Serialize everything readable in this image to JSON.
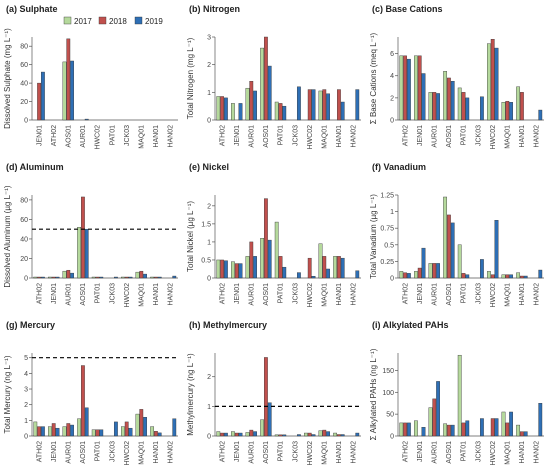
{
  "legend": {
    "years": [
      "2017",
      "2018",
      "2019"
    ],
    "colors": [
      "#b5d99c",
      "#c0504d",
      "#2e6fb5"
    ]
  },
  "chart_data": [
    {
      "type": "bar",
      "title": "(a) Sulphate",
      "ylabel": "Dissolved Sulphate (mg L⁻¹)",
      "ylim": [
        0,
        90
      ],
      "yticks": [
        0,
        20,
        40,
        60,
        80
      ],
      "categories": [
        "JEN01",
        "ATH02",
        "AOS01",
        "AUR01",
        "HWC02",
        "PAT01",
        "JCK03",
        "MAQ01",
        "HAN01",
        "HAN02"
      ],
      "series": [
        {
          "name": "2017",
          "values": [
            0,
            0,
            63,
            0,
            0,
            0,
            0,
            0,
            0,
            0
          ]
        },
        {
          "name": "2018",
          "values": [
            40,
            0,
            88,
            0,
            0,
            0,
            0,
            0,
            0,
            0
          ]
        },
        {
          "name": "2019",
          "values": [
            52,
            0,
            64,
            1,
            0,
            0,
            0,
            0,
            0,
            0
          ]
        }
      ]
    },
    {
      "type": "bar",
      "title": "(b) Nitrogen",
      "ylabel": "Total Nitrogen (mg L⁻¹)",
      "ylim": [
        0,
        3.0
      ],
      "yticks": [
        0,
        1,
        2,
        3
      ],
      "categories": [
        "ATH02",
        "JEN01",
        "AUR01",
        "AOS01",
        "PAT01",
        "JCK03",
        "HWC02",
        "MAQ01",
        "HAN01",
        "HAN02"
      ],
      "series": [
        {
          "name": "2017",
          "values": [
            0.85,
            0.6,
            1.15,
            2.6,
            0.65,
            0,
            0,
            1.05,
            0,
            0
          ]
        },
        {
          "name": "2018",
          "values": [
            0.85,
            0,
            1.4,
            3.0,
            0.6,
            0,
            1.1,
            1.1,
            1.1,
            0
          ]
        },
        {
          "name": "2019",
          "values": [
            0.8,
            0.6,
            1.05,
            1.95,
            0.5,
            1.2,
            1.1,
            0.95,
            0.65,
            1.1
          ]
        }
      ]
    },
    {
      "type": "bar",
      "title": "(c) Base Cations",
      "ylabel": "Σ Base Cations (meq L⁻¹)",
      "ylim": [
        0,
        7.5
      ],
      "yticks": [
        0,
        2,
        4,
        6
      ],
      "categories": [
        "ATH02",
        "JEN01",
        "AUR01",
        "AOS01",
        "PAT01",
        "JCK03",
        "HWC02",
        "MAQ01",
        "HAN01",
        "HAN02"
      ],
      "series": [
        {
          "name": "2017",
          "values": [
            5.8,
            5.8,
            2.5,
            4.4,
            2.9,
            0,
            6.9,
            1.6,
            3.0,
            0
          ]
        },
        {
          "name": "2018",
          "values": [
            5.8,
            5.8,
            2.5,
            3.8,
            2.5,
            0,
            7.3,
            1.7,
            2.5,
            0
          ]
        },
        {
          "name": "2019",
          "values": [
            5.5,
            4.2,
            2.4,
            3.5,
            2.0,
            2.1,
            6.5,
            1.6,
            0,
            0.9
          ]
        }
      ]
    },
    {
      "type": "bar",
      "title": "(d) Aluminum",
      "ylabel": "Dissolved Aluminum (µg L⁻¹)",
      "ylim": [
        0,
        85
      ],
      "yticks": [
        0,
        20,
        40,
        60,
        80
      ],
      "hline": 50,
      "categories": [
        "ATH02",
        "JEN01",
        "AUR01",
        "AOS01",
        "PAT01",
        "JCK03",
        "HWC02",
        "MAQ01",
        "HAN01",
        "HAN02"
      ],
      "series": [
        {
          "name": "2017",
          "values": [
            1,
            1,
            7,
            52,
            1,
            0,
            1,
            6,
            1,
            0
          ]
        },
        {
          "name": "2018",
          "values": [
            1,
            1,
            8,
            83,
            1,
            0,
            1,
            7,
            1,
            0
          ]
        },
        {
          "name": "2019",
          "values": [
            1,
            1,
            5,
            50,
            1,
            1,
            1,
            4,
            1,
            2
          ]
        }
      ]
    },
    {
      "type": "bar",
      "title": "(e) Nickel",
      "ylabel": "Total Nickel (µg L⁻¹)",
      "ylim": [
        0,
        2.3
      ],
      "yticks": [
        0,
        0.5,
        1.0,
        1.5,
        2.0
      ],
      "categories": [
        "ATH02",
        "JEN01",
        "AUR01",
        "AOS01",
        "PAT01",
        "JCK03",
        "HWC02",
        "MAQ01",
        "HAN01",
        "HAN02"
      ],
      "series": [
        {
          "name": "2017",
          "values": [
            0.5,
            0.45,
            0.6,
            1.1,
            1.55,
            0,
            0,
            0.95,
            0.6,
            0
          ]
        },
        {
          "name": "2018",
          "values": [
            0.5,
            0.4,
            1.0,
            2.2,
            0.6,
            0,
            0.55,
            0.6,
            0.6,
            0
          ]
        },
        {
          "name": "2019",
          "values": [
            0.48,
            0.4,
            0.6,
            1.05,
            0.3,
            0.15,
            0.05,
            0.25,
            0.55,
            0.2
          ]
        }
      ]
    },
    {
      "type": "bar",
      "title": "(f) Vanadium",
      "ylabel": "Total Vanadium (µg L⁻¹)",
      "ylim": [
        0,
        1.25
      ],
      "yticks": [
        0,
        0.25,
        0.5,
        0.75,
        1.0,
        1.25
      ],
      "categories": [
        "ATH02",
        "JEN01",
        "AUR01",
        "AOS01",
        "PAT01",
        "JCK03",
        "HWC02",
        "MAQ01",
        "HAN01",
        "HAN02"
      ],
      "series": [
        {
          "name": "2017",
          "values": [
            0.1,
            0.1,
            0.22,
            1.22,
            0.5,
            0,
            0.1,
            0.05,
            0.08,
            0
          ]
        },
        {
          "name": "2018",
          "values": [
            0.08,
            0.15,
            0.22,
            0.95,
            0.07,
            0,
            0.05,
            0.05,
            0.03,
            0
          ]
        },
        {
          "name": "2019",
          "values": [
            0.07,
            0.45,
            0.22,
            0.83,
            0.05,
            0.28,
            0.87,
            0.05,
            0.03,
            0.12
          ]
        }
      ]
    },
    {
      "type": "bar",
      "title": "(g) Mercury",
      "ylabel": "Total Mercury (ng L⁻¹)",
      "ylim": [
        0,
        5.3
      ],
      "yticks": [
        0,
        1,
        2,
        3,
        4,
        5
      ],
      "hline": 5,
      "categories": [
        "ATH02",
        "JEN01",
        "AUR01",
        "AOS01",
        "PAT01",
        "JCK03",
        "HWC02",
        "MAQ01",
        "HAN01",
        "HAN02"
      ],
      "series": [
        {
          "name": "2017",
          "values": [
            0.9,
            0.6,
            0.6,
            1.1,
            0.4,
            0,
            0.6,
            1.4,
            0.6,
            0
          ]
        },
        {
          "name": "2018",
          "values": [
            0.6,
            0.8,
            0.8,
            4.5,
            0.4,
            0,
            0.9,
            1.7,
            0.3,
            0
          ]
        },
        {
          "name": "2019",
          "values": [
            0.6,
            0.5,
            0.7,
            1.8,
            0.4,
            0.9,
            0.5,
            1.2,
            0.2,
            1.1
          ]
        }
      ]
    },
    {
      "type": "bar",
      "title": "(h) Methylmercury",
      "ylabel": "Methylmercury (ng L⁻¹)",
      "ylim": [
        0,
        2.8
      ],
      "yticks": [
        0,
        1,
        2
      ],
      "hline": 1,
      "categories": [
        "ATH02",
        "JEN01",
        "AUR01",
        "AOS01",
        "PAT01",
        "JCK03",
        "HWC02",
        "MAQ01",
        "HAN01",
        "HAN02"
      ],
      "series": [
        {
          "name": "2017",
          "values": [
            0.15,
            0.15,
            0.12,
            0.55,
            0.04,
            0,
            0.1,
            0.18,
            0.1,
            0
          ]
        },
        {
          "name": "2018",
          "values": [
            0.1,
            0.1,
            0.2,
            2.65,
            0.04,
            0,
            0.1,
            0.2,
            0.05,
            0
          ]
        },
        {
          "name": "2019",
          "values": [
            0.1,
            0.1,
            0.15,
            1.12,
            0.04,
            0.05,
            0.05,
            0.15,
            0.05,
            0.1
          ]
        }
      ]
    },
    {
      "type": "bar",
      "title": "(i) Alkylated PAHs",
      "ylabel": "Σ Alkylated PAHs (ng L⁻¹)",
      "ylim": [
        0,
        190
      ],
      "yticks": [
        0,
        50,
        100,
        150
      ],
      "categories": [
        "ATH02",
        "JEN01",
        "AUR01",
        "AOS01",
        "PAT01",
        "JCK03",
        "HWC02",
        "MAQ01",
        "HAN01",
        "HAN02"
      ],
      "series": [
        {
          "name": "2017",
          "values": [
            30,
            35,
            65,
            28,
            185,
            0,
            0,
            55,
            25,
            0
          ]
        },
        {
          "name": "2018",
          "values": [
            30,
            0,
            85,
            25,
            30,
            0,
            40,
            30,
            10,
            0
          ]
        },
        {
          "name": "2019",
          "values": [
            30,
            20,
            125,
            25,
            35,
            40,
            40,
            55,
            10,
            75
          ]
        }
      ]
    }
  ]
}
